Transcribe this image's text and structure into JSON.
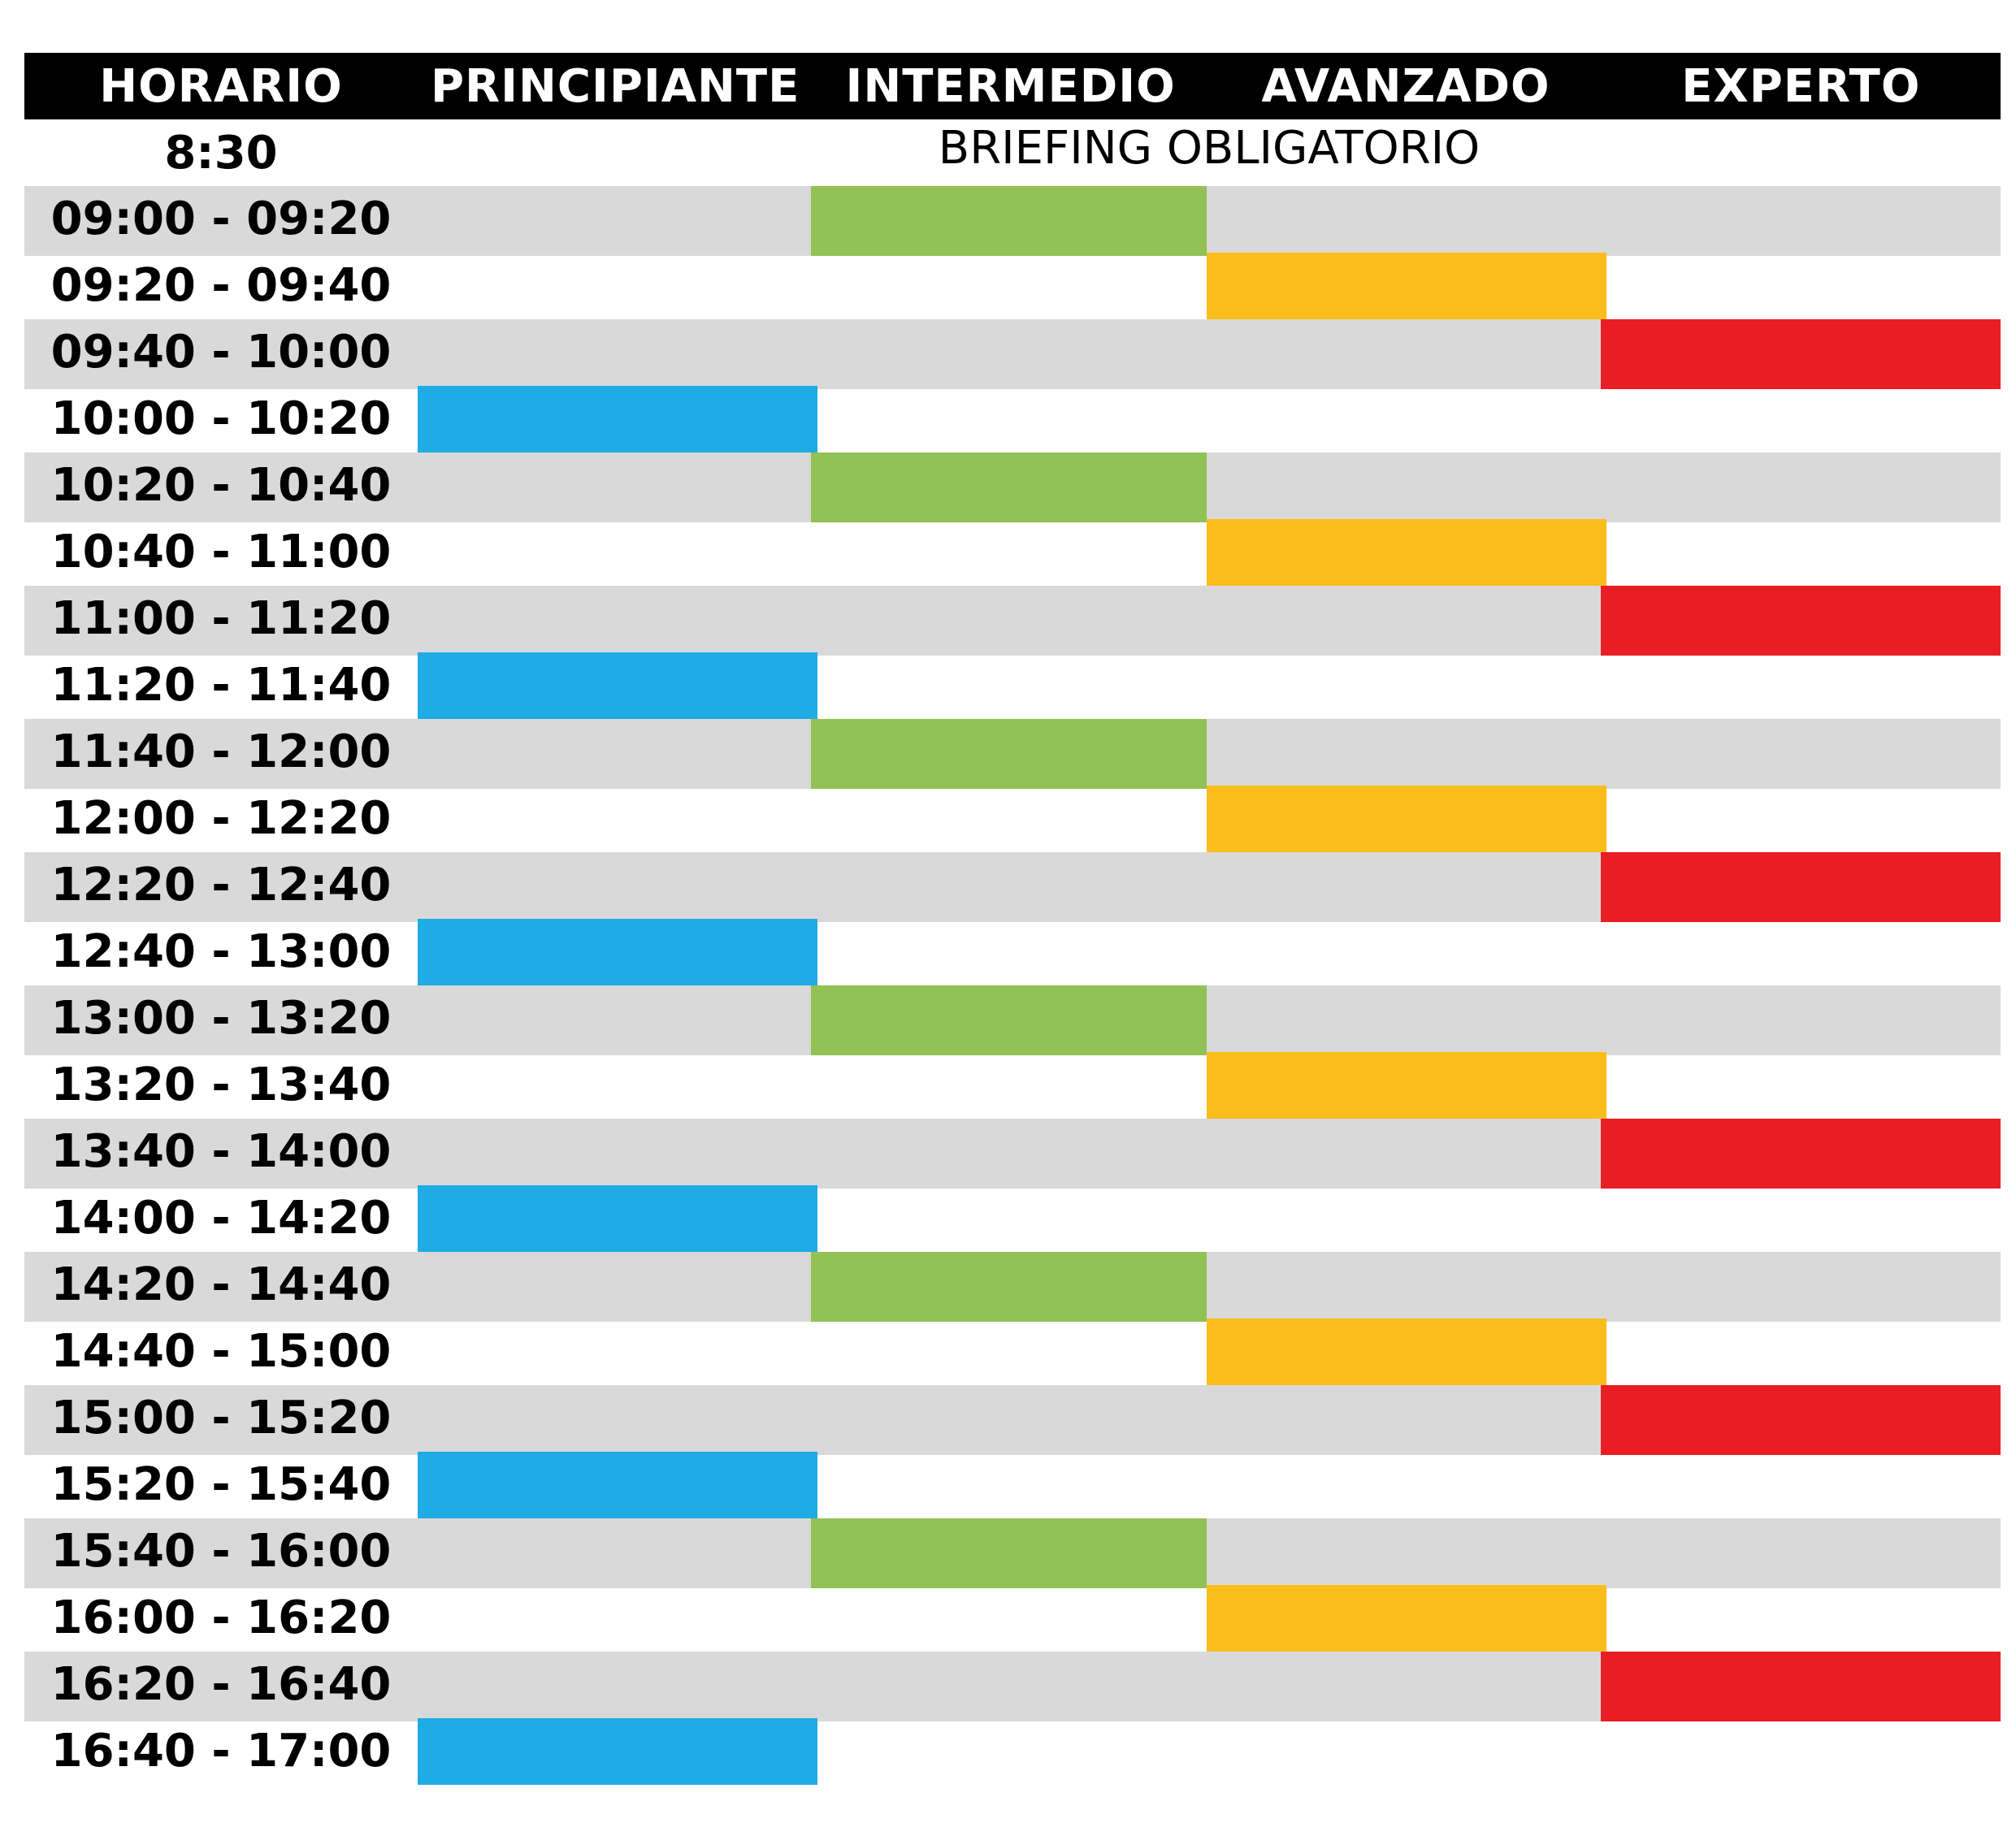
{
  "header": [
    "HORARIO",
    "PRINCIPIANTE",
    "INTERMEDIO",
    "AVANZADO",
    "EXPERTO"
  ],
  "briefing": {
    "time": "8:30",
    "label": "BRIEFING OBLIGATORIO"
  },
  "level_colors": [
    "#1fabe3",
    "#92c155",
    "#fbbd1b",
    "#e91d24"
  ],
  "slots": [
    {
      "time": "09:00 - 09:20",
      "level": 1
    },
    {
      "time": "09:20 - 09:40",
      "level": 2
    },
    {
      "time": "09:40 - 10:00",
      "level": 3
    },
    {
      "time": "10:00 - 10:20",
      "level": 0
    },
    {
      "time": "10:20 - 10:40",
      "level": 1
    },
    {
      "time": "10:40 - 11:00",
      "level": 2
    },
    {
      "time": "11:00 - 11:20",
      "level": 3
    },
    {
      "time": "11:20 - 11:40",
      "level": 0
    },
    {
      "time": "11:40 - 12:00",
      "level": 1
    },
    {
      "time": "12:00 - 12:20",
      "level": 2
    },
    {
      "time": "12:20 - 12:40",
      "level": 3
    },
    {
      "time": "12:40 - 13:00",
      "level": 0
    },
    {
      "time": "13:00 - 13:20",
      "level": 1
    },
    {
      "time": "13:20 - 13:40",
      "level": 2
    },
    {
      "time": "13:40 - 14:00",
      "level": 3
    },
    {
      "time": "14:00 - 14:20",
      "level": 0
    },
    {
      "time": "14:20 - 14:40",
      "level": 1
    },
    {
      "time": "14:40 - 15:00",
      "level": 2
    },
    {
      "time": "15:00 - 15:20",
      "level": 3
    },
    {
      "time": "15:20 - 15:40",
      "level": 0
    },
    {
      "time": "15:40 - 16:00",
      "level": 1
    },
    {
      "time": "16:00 - 16:20",
      "level": 2
    },
    {
      "time": "16:20 - 16:40",
      "level": 3
    },
    {
      "time": "16:40 - 17:00",
      "level": 0
    }
  ]
}
